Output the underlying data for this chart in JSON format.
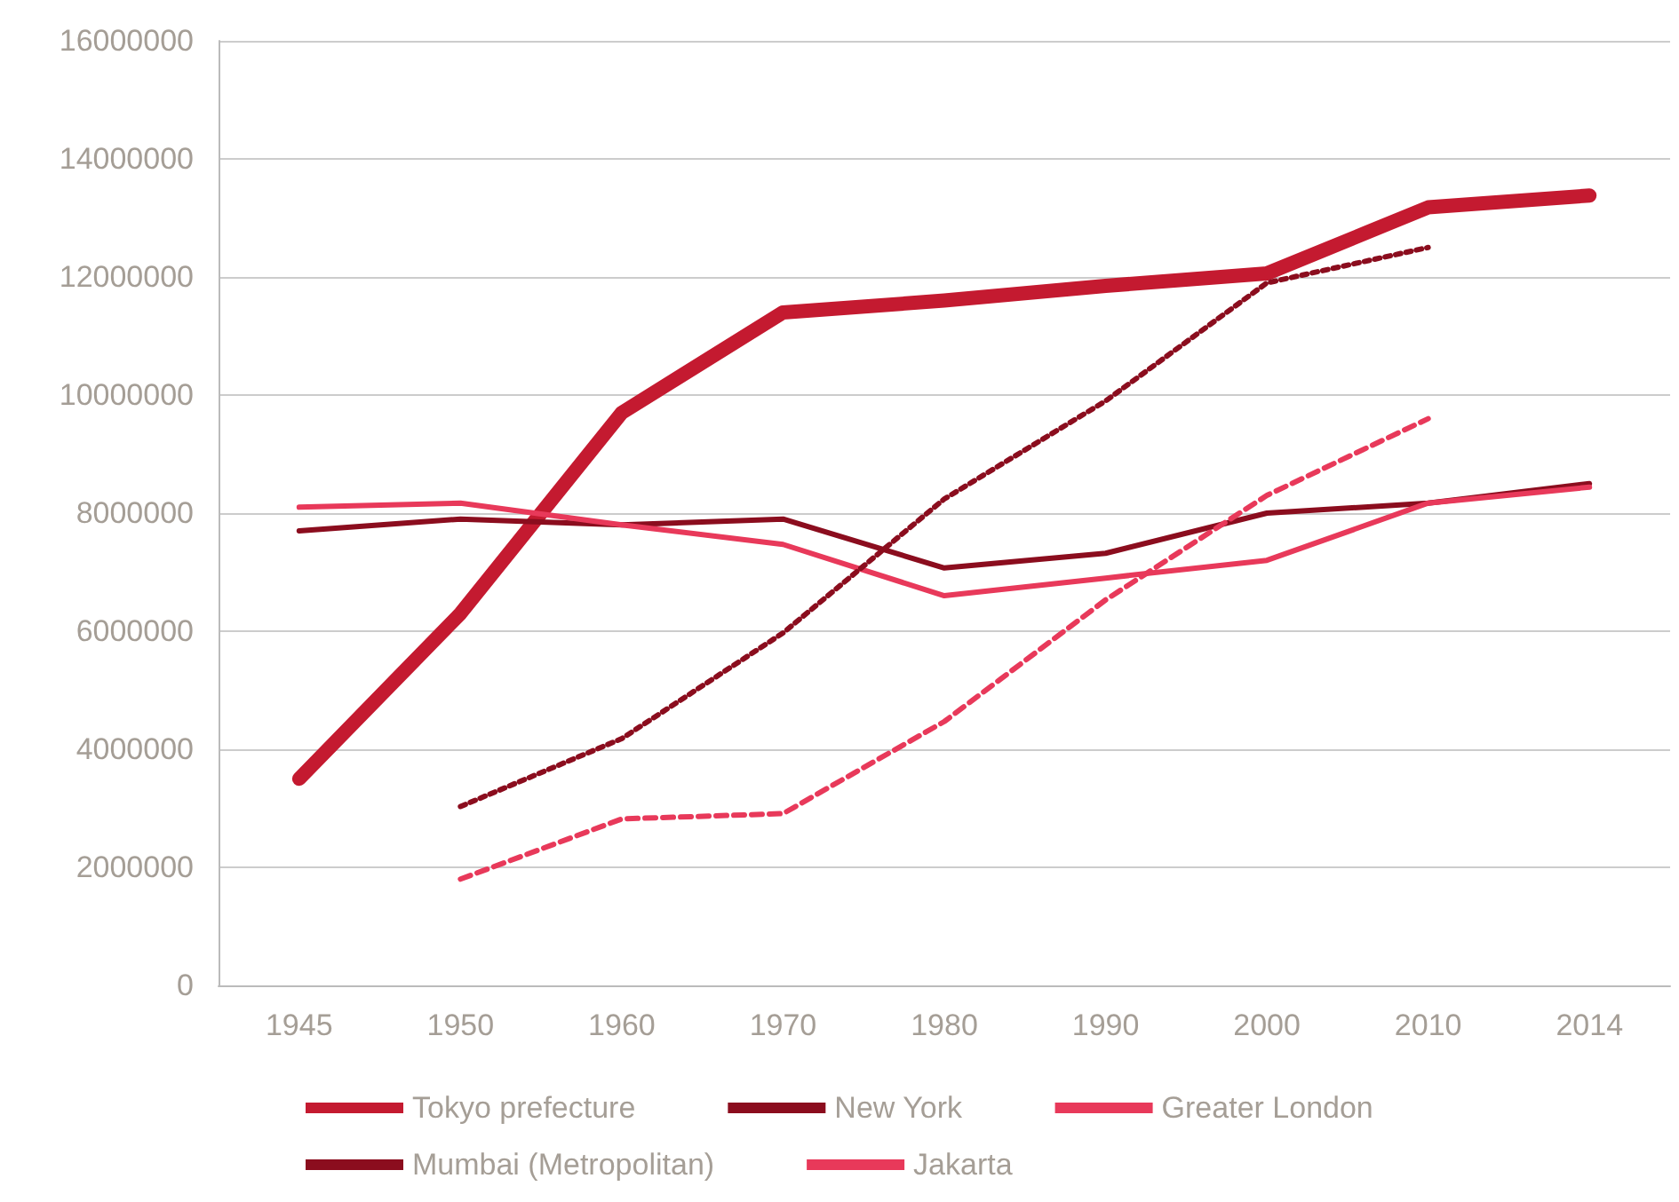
{
  "chart_data": {
    "type": "line",
    "categories": [
      "1945",
      "1950",
      "1960",
      "1970",
      "1980",
      "1990",
      "2000",
      "2010",
      "2014"
    ],
    "series": [
      {
        "name": "Tokyo prefecture",
        "color": "#c41a30",
        "line_style": "solid",
        "values": [
          3500000,
          6300000,
          9700000,
          11400000,
          11600000,
          11850000,
          12060000,
          13180000,
          13380000
        ]
      },
      {
        "name": "New York",
        "color": "#8b0d1e",
        "line_style": "solid",
        "values": [
          7700000,
          7900000,
          7800000,
          7900000,
          7070000,
          7320000,
          8000000,
          8170000,
          8500000
        ]
      },
      {
        "name": "Greater London",
        "color": "#e8395a",
        "line_style": "solid",
        "values": [
          8100000,
          8170000,
          7800000,
          7470000,
          6600000,
          6900000,
          7200000,
          8170000,
          8440000
        ]
      },
      {
        "name": "Mumbai (Metropolitan)",
        "color": "#8b0d1e",
        "line_style": "dotted",
        "values": [
          null,
          3030000,
          4180000,
          5970000,
          8240000,
          9900000,
          11900000,
          12500000,
          null
        ]
      },
      {
        "name": "Jakarta",
        "color": "#e8395a",
        "line_style": "dashed",
        "values": [
          null,
          1800000,
          2820000,
          2910000,
          4470000,
          6530000,
          8300000,
          9600000,
          null
        ]
      }
    ],
    "ylim": [
      0,
      16000000
    ],
    "yticks": [
      0,
      2000000,
      4000000,
      6000000,
      8000000,
      10000000,
      12000000,
      14000000,
      16000000
    ],
    "grid": "y",
    "legend": "bottom",
    "marker": "none"
  }
}
